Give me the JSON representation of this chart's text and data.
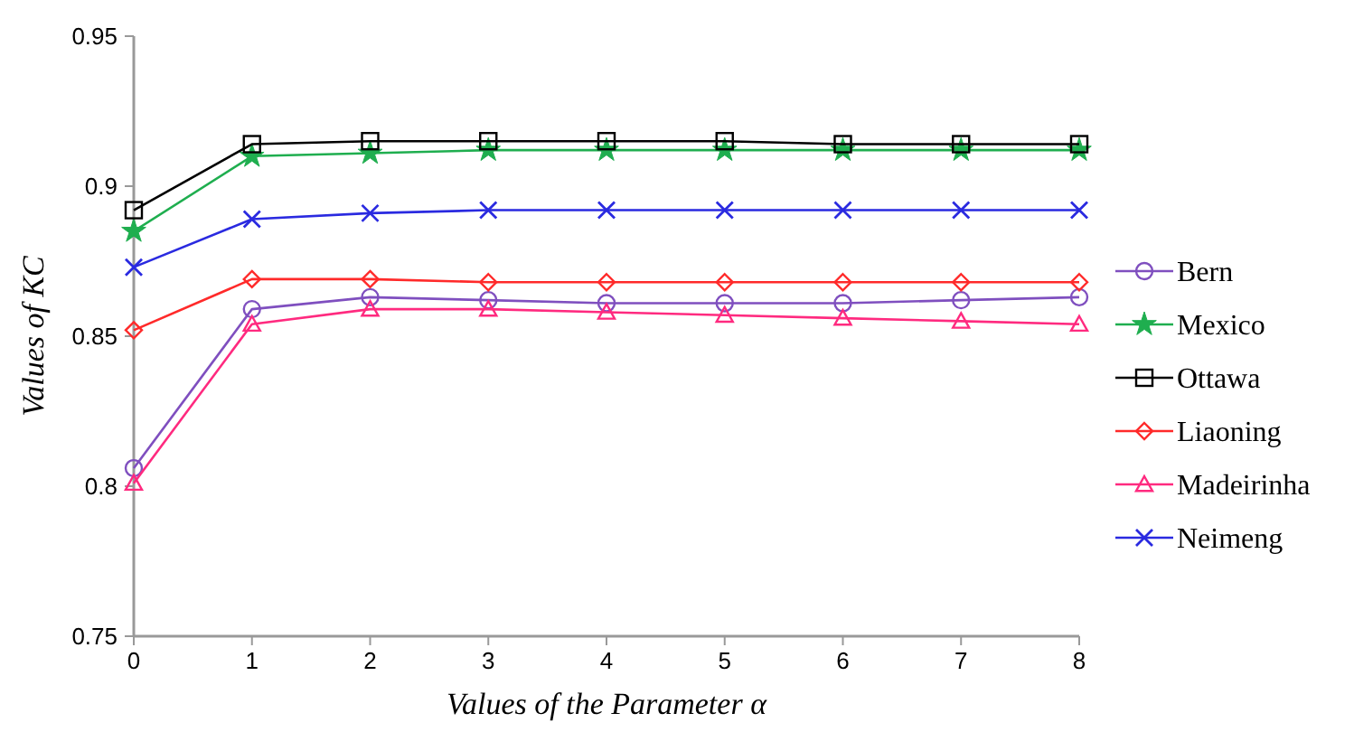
{
  "chart_data": {
    "type": "line",
    "xlabel": "Values of  the Parameter α",
    "ylabel": "Values of KC",
    "x": [
      0,
      1,
      2,
      3,
      4,
      5,
      6,
      7,
      8
    ],
    "xlim": [
      0,
      8
    ],
    "xticks": [
      0,
      1,
      2,
      3,
      4,
      5,
      6,
      7,
      8
    ],
    "ylim": [
      0.75,
      0.95
    ],
    "yticks": [
      0.75,
      0.8,
      0.85,
      0.9,
      0.95
    ],
    "grid": false,
    "legend": "right",
    "series": [
      {
        "name": "Bern",
        "color": "#7f4fbf",
        "marker": "circle",
        "values": [
          0.806,
          0.859,
          0.863,
          0.862,
          0.861,
          0.861,
          0.861,
          0.862,
          0.863
        ]
      },
      {
        "name": "Mexico",
        "color": "#1fae4f",
        "marker": "star",
        "values": [
          0.885,
          0.91,
          0.911,
          0.912,
          0.912,
          0.912,
          0.912,
          0.912,
          0.912
        ]
      },
      {
        "name": "Ottawa",
        "color": "#000000",
        "marker": "square",
        "values": [
          0.892,
          0.914,
          0.915,
          0.915,
          0.915,
          0.915,
          0.914,
          0.914,
          0.914
        ]
      },
      {
        "name": "Liaoning",
        "color": "#ff2a2a",
        "marker": "diamond",
        "values": [
          0.852,
          0.869,
          0.869,
          0.868,
          0.868,
          0.868,
          0.868,
          0.868,
          0.868
        ]
      },
      {
        "name": "Madeirinha",
        "color": "#ff2a7f",
        "marker": "triangle",
        "values": [
          0.801,
          0.854,
          0.859,
          0.859,
          0.858,
          0.857,
          0.856,
          0.855,
          0.854
        ]
      },
      {
        "name": "Neimeng",
        "color": "#2a2ae0",
        "marker": "cross",
        "values": [
          0.873,
          0.889,
          0.891,
          0.892,
          0.892,
          0.892,
          0.892,
          0.892,
          0.892
        ]
      }
    ]
  }
}
